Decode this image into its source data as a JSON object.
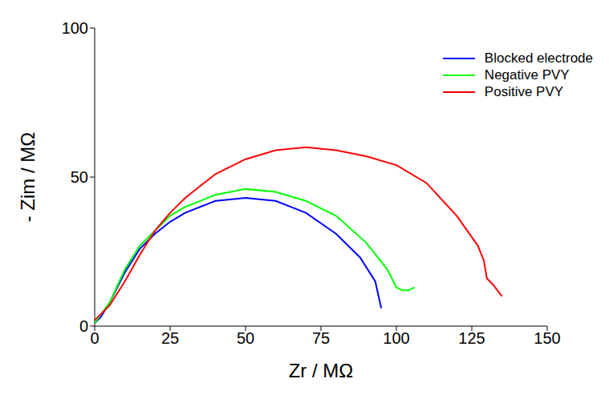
{
  "chart_data": {
    "type": "line",
    "x_label": "Zr / MΩ",
    "y_label": "- Zim / MΩ",
    "xlim": [
      0,
      150
    ],
    "xticks": [
      0,
      25,
      50,
      75,
      100,
      125,
      150
    ],
    "ylim": [
      0,
      100
    ],
    "yticks": [
      0,
      50,
      100
    ],
    "grid": false,
    "legend": "upper right",
    "marker": "none",
    "series": [
      {
        "name": "Blocked electrode",
        "color": "#0000ff",
        "x": [
          0,
          2,
          5,
          10,
          15,
          20,
          25,
          30,
          40,
          50,
          60,
          70,
          80,
          88,
          93,
          95
        ],
        "values": [
          1,
          3,
          8,
          18,
          26,
          31,
          35,
          38,
          42,
          43,
          42,
          38,
          31,
          23,
          15,
          6
        ]
      },
      {
        "name": "Negative PVY",
        "color": "#00ff00",
        "x": [
          0,
          5,
          10,
          15,
          20,
          25,
          30,
          40,
          50,
          60,
          70,
          80,
          90,
          97,
          100,
          102,
          104,
          106
        ],
        "values": [
          1,
          8,
          19,
          27,
          32,
          37,
          40,
          44,
          46,
          45,
          42,
          37,
          28,
          19,
          13,
          12,
          12,
          13
        ]
      },
      {
        "name": "Positive PVY",
        "color": "#ff0000",
        "x": [
          0,
          5,
          10,
          15,
          20,
          25,
          30,
          40,
          50,
          60,
          70,
          80,
          90,
          100,
          110,
          120,
          127,
          129,
          130,
          132,
          135
        ],
        "values": [
          2,
          7,
          15,
          24,
          32,
          38,
          43,
          51,
          56,
          59,
          60,
          59,
          57,
          54,
          48,
          37,
          27,
          22,
          16,
          14,
          10
        ]
      }
    ]
  }
}
